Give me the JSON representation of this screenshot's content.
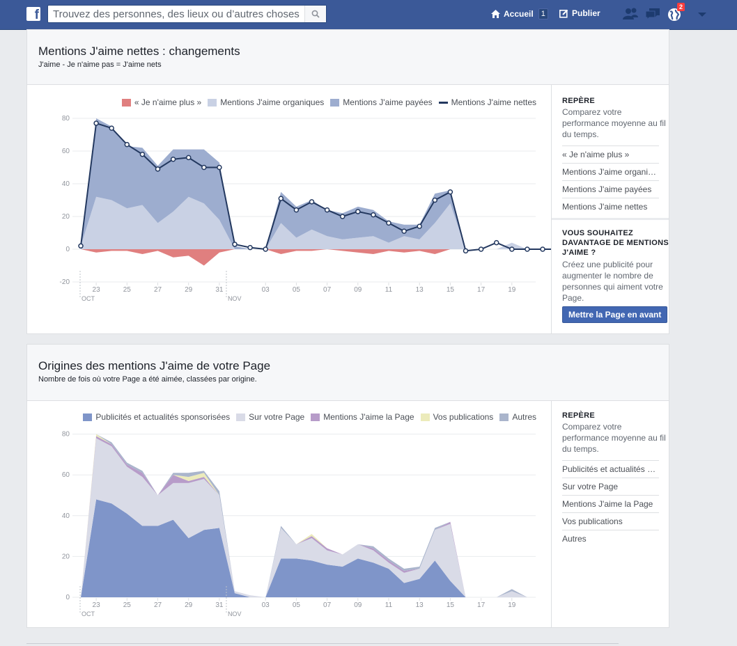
{
  "topbar": {
    "search_placeholder": "Trouvez des personnes, des lieux ou d’autres choses",
    "home_label": "Accueil",
    "home_count": "1",
    "publish_label": "Publier",
    "notifications_count": "2"
  },
  "card1": {
    "title": "Mentions J'aime nettes : changements",
    "subtitle": "J'aime - Je n'aime pas = J'aime nets",
    "legend": [
      "« Je n'aime plus »",
      "Mentions J'aime organiques",
      "Mentions J'aime payées",
      "Mentions J'aime nettes"
    ],
    "side": {
      "heading": "REPÈRE",
      "text": "Comparez votre performance moyenne au fil du temps.",
      "items": [
        "« Je n'aime plus »",
        "Mentions J'aime organiques",
        "Mentions J'aime payées",
        "Mentions J'aime nettes"
      ],
      "promo_heading": "VOUS SOUHAITEZ DAVANTAGE DE MENTIONS J'AIME ?",
      "promo_text": "Créez une publicité pour augmenter le nombre de personnes qui aiment votre Page.",
      "promo_button": "Mettre la Page en avant"
    }
  },
  "card2": {
    "title": "Origines des mentions J'aime de votre Page",
    "subtitle": "Nombre de fois où votre Page a été aimée, classées par origine.",
    "legend": [
      "Publicités et actualités sponsorisées",
      "Sur votre Page",
      "Mentions J'aime la Page",
      "Vos publications",
      "Autres"
    ],
    "side": {
      "heading": "REPÈRE",
      "text": "Comparez votre performance moyenne au fil du temps.",
      "items": [
        "Publicités et actualités sponsorisées",
        "Sur votre Page",
        "Mentions J'aime la Page",
        "Vos publications",
        "Autres"
      ]
    }
  },
  "colors": {
    "unlikes": "#e07f7f",
    "organic": "#c9d1e4",
    "paid": "#9dadcf",
    "net": "#23385f",
    "ads": "#7f95c9",
    "onpage": "#d9dbe7",
    "pagelike": "#b79cc9",
    "posts": "#ecebbb",
    "other": "#aab5cc"
  },
  "chart_data": [
    {
      "type": "area",
      "x": [
        "22 oct",
        "23 oct",
        "24 oct",
        "25 oct",
        "26 oct",
        "27 oct",
        "28 oct",
        "29 oct",
        "30 oct",
        "31 oct",
        "01 nov",
        "02 nov",
        "03 nov",
        "04 nov",
        "05 nov",
        "06 nov",
        "07 nov",
        "08 nov",
        "09 nov",
        "10 nov",
        "11 nov",
        "12 nov",
        "13 nov",
        "14 nov",
        "15 nov",
        "16 nov",
        "17 nov",
        "18 nov",
        "19 nov",
        "20 nov",
        "21 nov",
        "22 nov"
      ],
      "tick_labels": [
        "23",
        "25",
        "27",
        "29",
        "31",
        "03",
        "05",
        "07",
        "09",
        "11",
        "13",
        "15",
        "17",
        "19"
      ],
      "month_labels": [
        "OCT",
        "NOV"
      ],
      "ylim": [
        -20,
        80
      ],
      "yticks": [
        -20,
        0,
        20,
        40,
        60,
        80
      ],
      "series": [
        {
          "name": "« Je n'aime plus »",
          "values": [
            0,
            -2,
            -1,
            -1,
            -3,
            -1,
            -5,
            -4,
            -10,
            -2,
            0,
            0,
            0,
            -3,
            -1,
            -1,
            0,
            -1,
            -2,
            -3,
            -1,
            -2,
            -1,
            -3,
            0,
            0,
            0,
            0,
            0,
            0,
            0,
            0
          ]
        },
        {
          "name": "Mentions J'aime organiques",
          "values": [
            2,
            32,
            30,
            25,
            27,
            16,
            23,
            32,
            28,
            18,
            0,
            0,
            0,
            16,
            7,
            12,
            8,
            6,
            7,
            8,
            4,
            8,
            6,
            16,
            28,
            0,
            0,
            0,
            4,
            0,
            0,
            0
          ]
        },
        {
          "name": "Mentions J'aime payées",
          "values": [
            0,
            48,
            45,
            38,
            35,
            35,
            38,
            29,
            33,
            35,
            2,
            0,
            0,
            19,
            19,
            18,
            16,
            16,
            19,
            16,
            13,
            7,
            9,
            18,
            8,
            0,
            0,
            0,
            0,
            0,
            0,
            0
          ]
        },
        {
          "name": "Mentions J'aime nettes",
          "values": [
            2,
            77,
            74,
            64,
            58,
            49,
            55,
            56,
            50,
            50,
            3,
            1,
            0,
            31,
            24,
            29,
            24,
            20,
            23,
            21,
            16,
            11,
            14,
            30,
            35,
            -1,
            0,
            4,
            0,
            0,
            0,
            0
          ]
        }
      ]
    },
    {
      "type": "area",
      "x": [
        "22 oct",
        "23 oct",
        "24 oct",
        "25 oct",
        "26 oct",
        "27 oct",
        "28 oct",
        "29 oct",
        "30 oct",
        "31 oct",
        "01 nov",
        "02 nov",
        "03 nov",
        "04 nov",
        "05 nov",
        "06 nov",
        "07 nov",
        "08 nov",
        "09 nov",
        "10 nov",
        "11 nov",
        "12 nov",
        "13 nov",
        "14 nov",
        "15 nov",
        "16 nov",
        "17 nov",
        "18 nov",
        "19 nov",
        "20 nov",
        "21 nov",
        "22 nov"
      ],
      "tick_labels": [
        "23",
        "25",
        "27",
        "29",
        "31",
        "03",
        "05",
        "07",
        "09",
        "11",
        "13",
        "15",
        "17",
        "19"
      ],
      "month_labels": [
        "OCT",
        "NOV"
      ],
      "ylim": [
        0,
        80
      ],
      "yticks": [
        0,
        20,
        40,
        60,
        80
      ],
      "series": [
        {
          "name": "Publicités et actualités sponsorisées",
          "values": [
            0,
            48,
            46,
            41,
            35,
            35,
            38,
            29,
            33,
            34,
            2,
            0,
            0,
            19,
            19,
            18,
            16,
            15,
            19,
            17,
            14,
            7,
            9,
            18,
            8,
            0,
            0,
            0,
            0,
            0,
            0,
            0
          ]
        },
        {
          "name": "Sur votre Page",
          "values": [
            0,
            30,
            28,
            23,
            24,
            15,
            18,
            27,
            25,
            16,
            1,
            1,
            0,
            15,
            7,
            11,
            7,
            6,
            7,
            6,
            3,
            5,
            5,
            15,
            28,
            0,
            0,
            0,
            3,
            0,
            0,
            0
          ]
        },
        {
          "name": "Mentions J'aime la Page",
          "values": [
            0,
            1,
            1,
            1,
            2,
            0,
            4,
            1,
            1,
            0,
            0,
            0,
            0,
            0,
            0,
            1,
            1,
            0,
            0,
            1,
            1,
            1,
            0,
            0,
            1,
            0,
            0,
            0,
            0,
            0,
            0,
            0
          ]
        },
        {
          "name": "Vos publications",
          "values": [
            0,
            1,
            0,
            0,
            0,
            0,
            0,
            2,
            2,
            0,
            0,
            0,
            0,
            0,
            0,
            1,
            0,
            0,
            0,
            0,
            0,
            0,
            0,
            0,
            0,
            0,
            0,
            0,
            0,
            0,
            0,
            0
          ]
        },
        {
          "name": "Autres",
          "values": [
            0,
            0,
            1,
            1,
            1,
            0,
            1,
            2,
            1,
            2,
            0,
            0,
            0,
            1,
            0,
            0,
            0,
            0,
            0,
            1,
            1,
            1,
            1,
            1,
            0,
            0,
            0,
            0,
            1,
            0,
            0,
            0
          ]
        }
      ]
    }
  ]
}
